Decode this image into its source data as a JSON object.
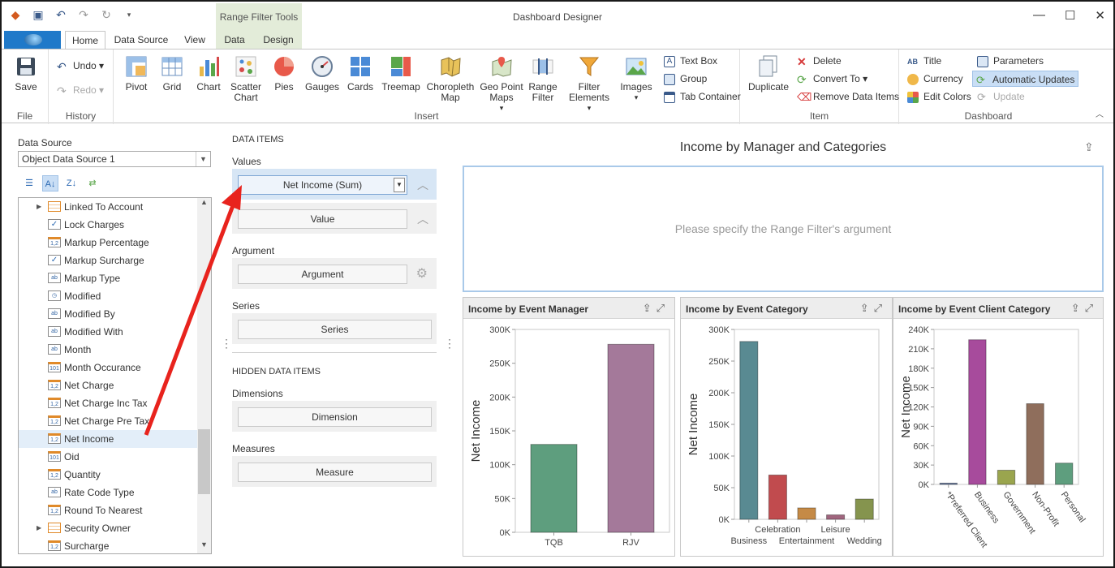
{
  "window": {
    "title": "Dashboard Designer",
    "context_tools": "Range Filter Tools",
    "controls": [
      "—",
      "☐",
      "✕"
    ]
  },
  "quick_access": [
    "app-logo-icon",
    "save-icon",
    "undo-icon",
    "redo-icon",
    "refresh-icon",
    "customize-icon"
  ],
  "tabs": [
    {
      "label": "Home",
      "active": true
    },
    {
      "label": "Data Source"
    },
    {
      "label": "View"
    },
    {
      "label": "Data"
    },
    {
      "label": "Design"
    }
  ],
  "ribbon": {
    "file": {
      "label": "File",
      "save": "Save"
    },
    "history": {
      "label": "History",
      "undo": "Undo",
      "redo": "Redo"
    },
    "insert": {
      "label": "Insert",
      "items": [
        "Pivot",
        "Grid",
        "Chart",
        "Scatter\nChart",
        "Pies",
        "Gauges",
        "Cards",
        "Treemap",
        "Choropleth\nMap",
        "Geo Point\nMaps",
        "Range\nFilter",
        "Filter\nElements",
        "Images"
      ],
      "small": [
        "Text Box",
        "Group",
        "Tab Container"
      ]
    },
    "item": {
      "label": "Item",
      "duplicate": "Duplicate",
      "delete": "Delete",
      "convert_to": "Convert To",
      "remove_data_items": "Remove Data Items"
    },
    "dashboard": {
      "label": "Dashboard",
      "title": "Title",
      "currency": "Currency",
      "edit_colors": "Edit Colors",
      "parameters": "Parameters",
      "automatic_updates": "Automatic Updates",
      "update": "Update"
    }
  },
  "data_source": {
    "label": "Data Source",
    "selected": "Object Data Source 1",
    "fields": [
      {
        "name": "Linked To Account",
        "type": "table",
        "expandable": true
      },
      {
        "name": "Lock Charges",
        "type": "bool"
      },
      {
        "name": "Markup Percentage",
        "type": "number"
      },
      {
        "name": "Markup Surcharge",
        "type": "bool"
      },
      {
        "name": "Markup Type",
        "type": "text"
      },
      {
        "name": "Modified",
        "type": "date"
      },
      {
        "name": "Modified By",
        "type": "text"
      },
      {
        "name": "Modified With",
        "type": "text"
      },
      {
        "name": "Month",
        "type": "text"
      },
      {
        "name": "Month Occurance",
        "type": "integer"
      },
      {
        "name": "Net Charge",
        "type": "number"
      },
      {
        "name": "Net Charge Inc Tax",
        "type": "number"
      },
      {
        "name": "Net Charge Pre Tax",
        "type": "number"
      },
      {
        "name": "Net Income",
        "type": "number",
        "selected": true
      },
      {
        "name": "Oid",
        "type": "integer"
      },
      {
        "name": "Quantity",
        "type": "number"
      },
      {
        "name": "Rate Code Type",
        "type": "text"
      },
      {
        "name": "Round To Nearest",
        "type": "number"
      },
      {
        "name": "Security Owner",
        "type": "table",
        "expandable": true
      },
      {
        "name": "Surcharge",
        "type": "number"
      }
    ]
  },
  "data_items": {
    "title": "DATA ITEMS",
    "values_label": "Values",
    "value_1": "Net Income (Sum)",
    "value_2": "Value",
    "argument_label": "Argument",
    "argument": "Argument",
    "series_label": "Series",
    "series": "Series",
    "hidden_title": "HIDDEN DATA ITEMS",
    "dimensions_label": "Dimensions",
    "dimension": "Dimension",
    "measures_label": "Measures",
    "measure": "Measure"
  },
  "dashboard": {
    "title": "Income by Manager and Categories",
    "range_filter_message": "Please specify the Range Filter's argument"
  },
  "chart_data": [
    {
      "type": "bar",
      "title": "Income by Event Manager",
      "ylabel": "Net Income",
      "categories": [
        "TQB",
        "RJV"
      ],
      "values": [
        130000,
        278000
      ],
      "ylim": [
        0,
        300000
      ],
      "yticks": [
        "0K",
        "50K",
        "100K",
        "150K",
        "200K",
        "250K",
        "300K"
      ],
      "colors": [
        "#5e9e7e",
        "#a4799a"
      ]
    },
    {
      "type": "bar",
      "title": "Income by Event Category",
      "ylabel": "Net Income",
      "categories": [
        "Business",
        "Celebration",
        "Entertainment",
        "Leisure",
        "Wedding"
      ],
      "values": [
        281000,
        70000,
        18000,
        7000,
        32000
      ],
      "ylim": [
        0,
        300000
      ],
      "yticks": [
        "0K",
        "50K",
        "100K",
        "150K",
        "200K",
        "250K",
        "300K"
      ],
      "colors": [
        "#598a92",
        "#c14b4e",
        "#c58a46",
        "#a0657e",
        "#85944e"
      ]
    },
    {
      "type": "bar",
      "title": "Income by Event Client Category",
      "ylabel": "Net Income",
      "categories": [
        "*Preferred Client",
        "Business",
        "Government",
        "Non-Profit",
        "Personal"
      ],
      "values": [
        2000,
        224000,
        22000,
        125000,
        33000
      ],
      "ylim": [
        0,
        240000
      ],
      "yticks": [
        "0K",
        "30K",
        "60K",
        "90K",
        "120K",
        "150K",
        "180K",
        "210K",
        "240K"
      ],
      "colors": [
        "#5a6f9c",
        "#a74b9c",
        "#9aa54e",
        "#8f6e5c",
        "#5e9e7e"
      ]
    }
  ],
  "colors": {
    "accent": "#1f79c9",
    "context_tab": "#e3ecd9",
    "selection": "#c9def5",
    "arrow": "#e8231d"
  }
}
